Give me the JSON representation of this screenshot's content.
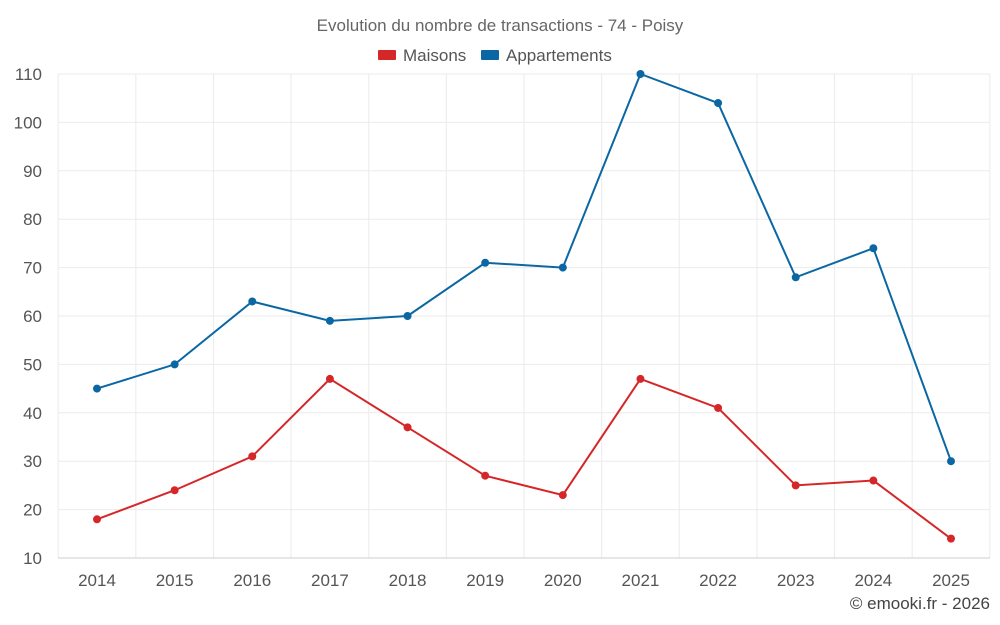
{
  "chart_data": {
    "type": "line",
    "title": "Evolution du nombre de transactions - 74 - Poisy",
    "xlabel": "",
    "ylabel": "",
    "categories": [
      "2014",
      "2015",
      "2016",
      "2017",
      "2018",
      "2019",
      "2020",
      "2021",
      "2022",
      "2023",
      "2024",
      "2025"
    ],
    "ylim": [
      10,
      110
    ],
    "yticks": [
      10,
      20,
      30,
      40,
      50,
      60,
      70,
      80,
      90,
      100,
      110
    ],
    "legend_position": "top-center",
    "grid": true,
    "series": [
      {
        "name": "Maisons",
        "color": "#d62728",
        "values": [
          18,
          24,
          31,
          47,
          37,
          27,
          23,
          47,
          41,
          25,
          26,
          14
        ]
      },
      {
        "name": "Appartements",
        "color": "#0a67a3",
        "values": [
          45,
          50,
          63,
          59,
          60,
          71,
          70,
          110,
          104,
          68,
          74,
          30
        ]
      }
    ]
  },
  "credit": "© emooki.fr - 2026"
}
